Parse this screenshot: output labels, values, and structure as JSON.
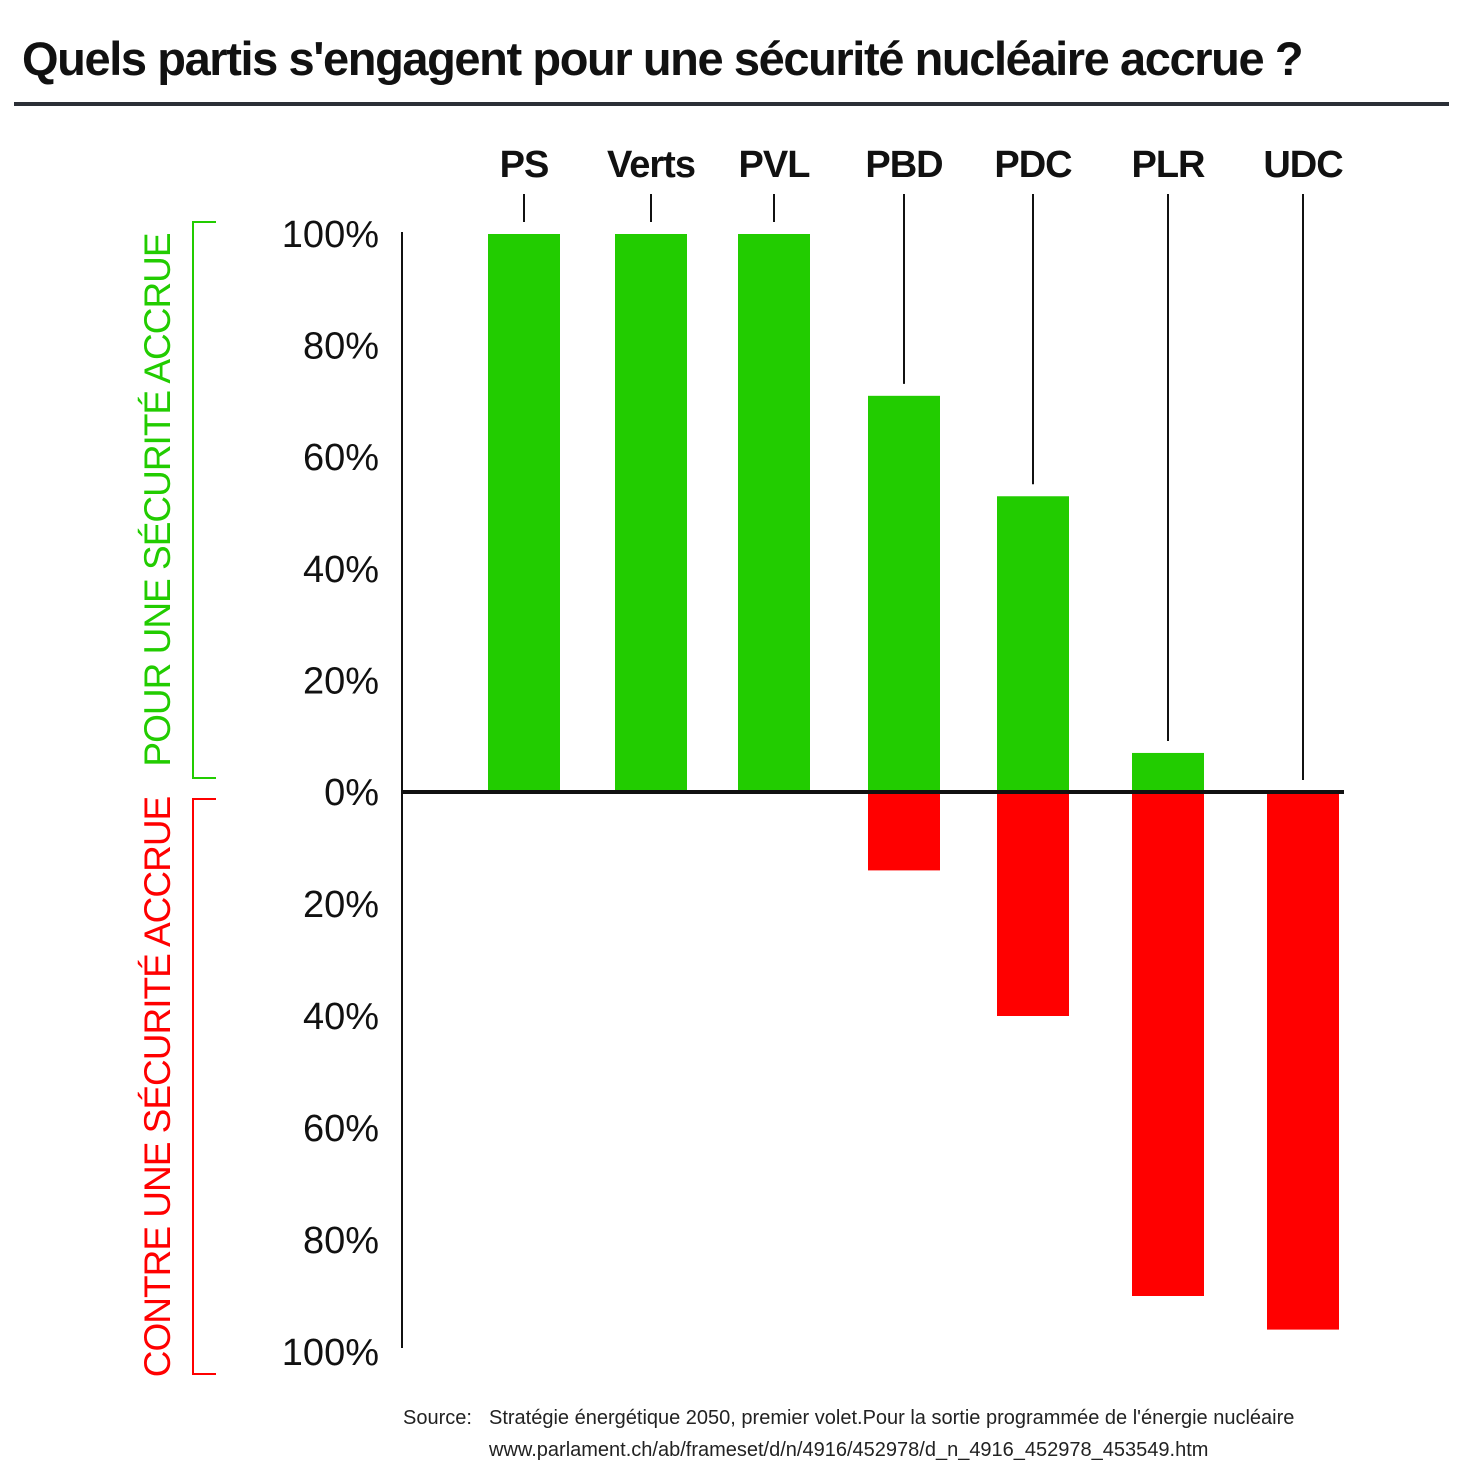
{
  "chart_data": {
    "type": "bar",
    "title": "Quels partis s'engagent pour une sécurité nucléaire accrue ?",
    "categories": [
      "PS",
      "Verts",
      "PVL",
      "PBD",
      "PDC",
      "PLR",
      "UDC"
    ],
    "series": [
      {
        "name": "POUR UNE SÉCURITÉ ACCRUE",
        "values": [
          100,
          100,
          100,
          71,
          53,
          7,
          0
        ],
        "color": "#22cc00"
      },
      {
        "name": "CONTRE UNE SÉCURITÉ ACCRUE",
        "values": [
          0,
          0,
          0,
          14,
          40,
          90,
          96
        ],
        "color": "#ff0000"
      }
    ],
    "yticks_up": [
      "100%",
      "80%",
      "60%",
      "40%",
      "20%",
      "0%"
    ],
    "yticks_down": [
      "20%",
      "40%",
      "60%",
      "80%",
      "100%"
    ],
    "ylim": [
      -100,
      100
    ],
    "grid": false,
    "legend": "left-vertical-brackets"
  },
  "source": {
    "label": "Source:",
    "line1": "Stratégie énergétique 2050, premier volet.Pour la sortie programmée de l'énergie nucléaire",
    "line2": "www.parlament.ch/ab/frameset/d/n/4916/452978/d_n_4916_452978_453549.htm"
  }
}
